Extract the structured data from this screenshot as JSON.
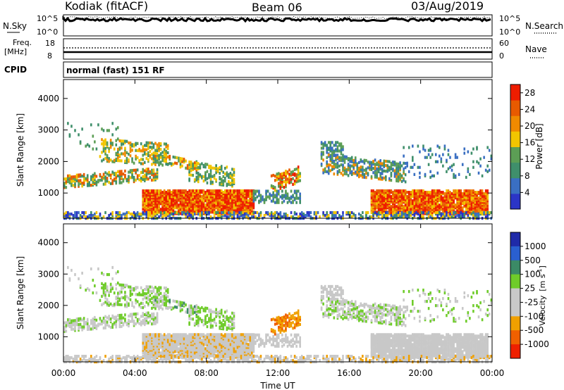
{
  "header": {
    "station": "Kodiak (fitACF)",
    "beam": "Beam 06",
    "date": "03/Aug/2019"
  },
  "top_strip": {
    "left_label": "N.Sky",
    "left_ticks": [
      "10^5",
      "10^0"
    ],
    "right_label": "N.Search",
    "right_ticks": [
      "10^5",
      "10^0"
    ]
  },
  "freq_strip": {
    "left_label_1": "Freq.",
    "left_label_2": "[MHz]",
    "left_ticks": [
      "18",
      "8"
    ],
    "right_label": "Nave",
    "right_ticks": [
      "60",
      "0"
    ]
  },
  "cpid": {
    "label": "CPID",
    "value": "normal (fast) 151 RF"
  },
  "colors": {
    "power_scale": [
      "#2b35c7",
      "#3a6fc2",
      "#3f8f6b",
      "#5c9e55",
      "#f2c500",
      "#f08a00",
      "#e85a00",
      "#ee1d00"
    ],
    "velocity_scale": [
      "#1f2aa8",
      "#2a5fd0",
      "#3b8a66",
      "#6fcc2a",
      "#c8c8c8",
      "#c8c8c8",
      "#f0a000",
      "#f06000",
      "#ee2000"
    ]
  },
  "chart_data": [
    {
      "type": "heatmap",
      "name": "Power panel",
      "ylabel": "Slant Range [km]",
      "y_ticks": [
        "1000",
        "2000",
        "3000",
        "4000"
      ],
      "ylim": [
        200,
        4600
      ],
      "x_ticks": [
        "00:00",
        "04:00",
        "08:00",
        "12:00",
        "16:00",
        "20:00",
        "00:00"
      ],
      "xlim_hours": [
        0,
        24
      ],
      "colorbar": {
        "label": "Power [dB]",
        "ticks": [
          "4",
          "8",
          "12",
          "16",
          "20",
          "24",
          "28"
        ],
        "range": [
          0,
          30
        ]
      }
    },
    {
      "type": "heatmap",
      "name": "Velocity panel",
      "ylabel": "Slant Range [km]",
      "y_ticks": [
        "1000",
        "2000",
        "3000",
        "4000"
      ],
      "ylim": [
        200,
        4600
      ],
      "x_ticks": [
        "00:00",
        "04:00",
        "08:00",
        "12:00",
        "16:00",
        "20:00",
        "00:00"
      ],
      "xlabel": "Time UT",
      "xlim_hours": [
        0,
        24
      ],
      "colorbar": {
        "label_main": "Velocity",
        "label_unit": "[m s",
        "label_sup": "-1",
        "label_close": "]",
        "ticks": [
          "1000",
          "500",
          "100",
          "25",
          "-25",
          "-100",
          "-500",
          "-1000"
        ]
      }
    }
  ]
}
